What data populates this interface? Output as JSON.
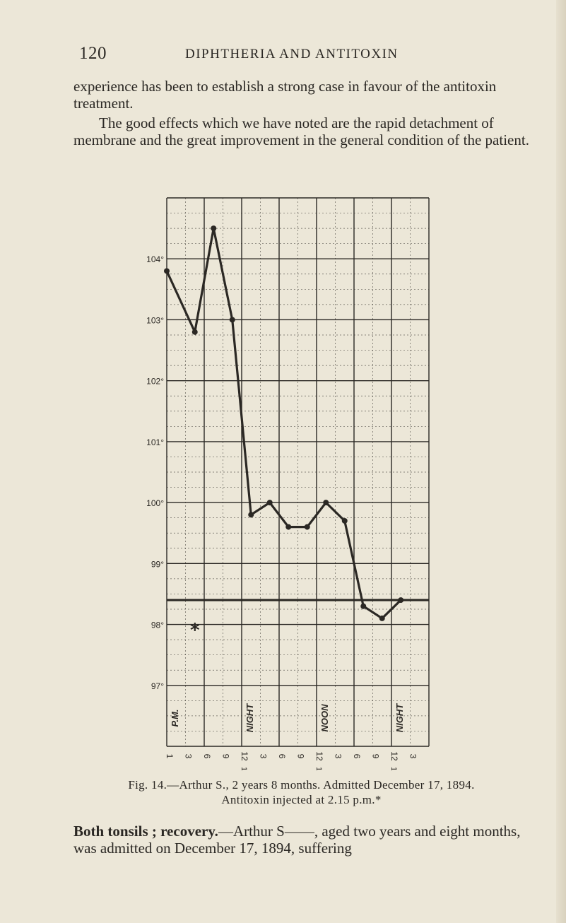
{
  "header": {
    "page_number": "120",
    "running_title": "DIPHTHERIA AND ANTITOXIN"
  },
  "paragraphs": {
    "p1": "experience has been to establish a strong case in favour of the antitoxin treatment.",
    "p2": "The good effects which we have noted are the rapid detachment of membrane and the great improvement in the general condition of the patient.",
    "p3_lead": "Both tonsils ; recovery.",
    "p3_rest": "—Arthur S——, aged two years and eight months, was admitted on December 17, 1894, suffering"
  },
  "caption": {
    "line1": "Fig. 14.—Arthur S., 2 years 8 months. Admitted December 17, 1894.",
    "line2": "Antitoxin injected at 2.15 p.m.*"
  },
  "chart_data": {
    "type": "line",
    "title": "",
    "y_tick_labels": [
      "104°",
      "103°",
      "102°",
      "101°",
      "100°",
      "99°",
      "98°",
      "97°"
    ],
    "y_ticks": [
      104,
      103,
      102,
      101,
      100,
      99,
      98,
      97
    ],
    "ylim": [
      96,
      105
    ],
    "x_tick_labels": [
      "1",
      "3",
      "6",
      "9",
      "12",
      "3",
      "6",
      "9",
      "12",
      "3",
      "6",
      "9",
      "12",
      "3"
    ],
    "x_subtick_marks": [
      "",
      "",
      "",
      "",
      "1",
      "",
      "",
      "",
      "1",
      "",
      "",
      "",
      "1",
      ""
    ],
    "column_labels": [
      {
        "column": 0,
        "text": "P.M."
      },
      {
        "column": 2,
        "text": "NIGHT"
      },
      {
        "column": 4,
        "text": "NOON"
      },
      {
        "column": 6,
        "text": "NIGHT"
      }
    ],
    "normal_line": 98.4,
    "injection_marker": {
      "text": "*",
      "column": 0.75,
      "y": 97.9
    },
    "grid": true,
    "series": [
      {
        "points": [
          {
            "x": 0,
            "y": 103.8
          },
          {
            "x": 0.75,
            "y": 102.8
          },
          {
            "x": 1.25,
            "y": 104.5
          },
          {
            "x": 1.75,
            "y": 103.0
          },
          {
            "x": 2.25,
            "y": 99.8
          },
          {
            "x": 2.75,
            "y": 100.0
          },
          {
            "x": 3.25,
            "y": 99.6
          },
          {
            "x": 3.75,
            "y": 99.6
          },
          {
            "x": 4.25,
            "y": 100.0
          },
          {
            "x": 4.75,
            "y": 99.7
          },
          {
            "x": 5.25,
            "y": 98.3
          },
          {
            "x": 5.75,
            "y": 98.1
          },
          {
            "x": 6.25,
            "y": 98.4
          }
        ]
      }
    ]
  }
}
